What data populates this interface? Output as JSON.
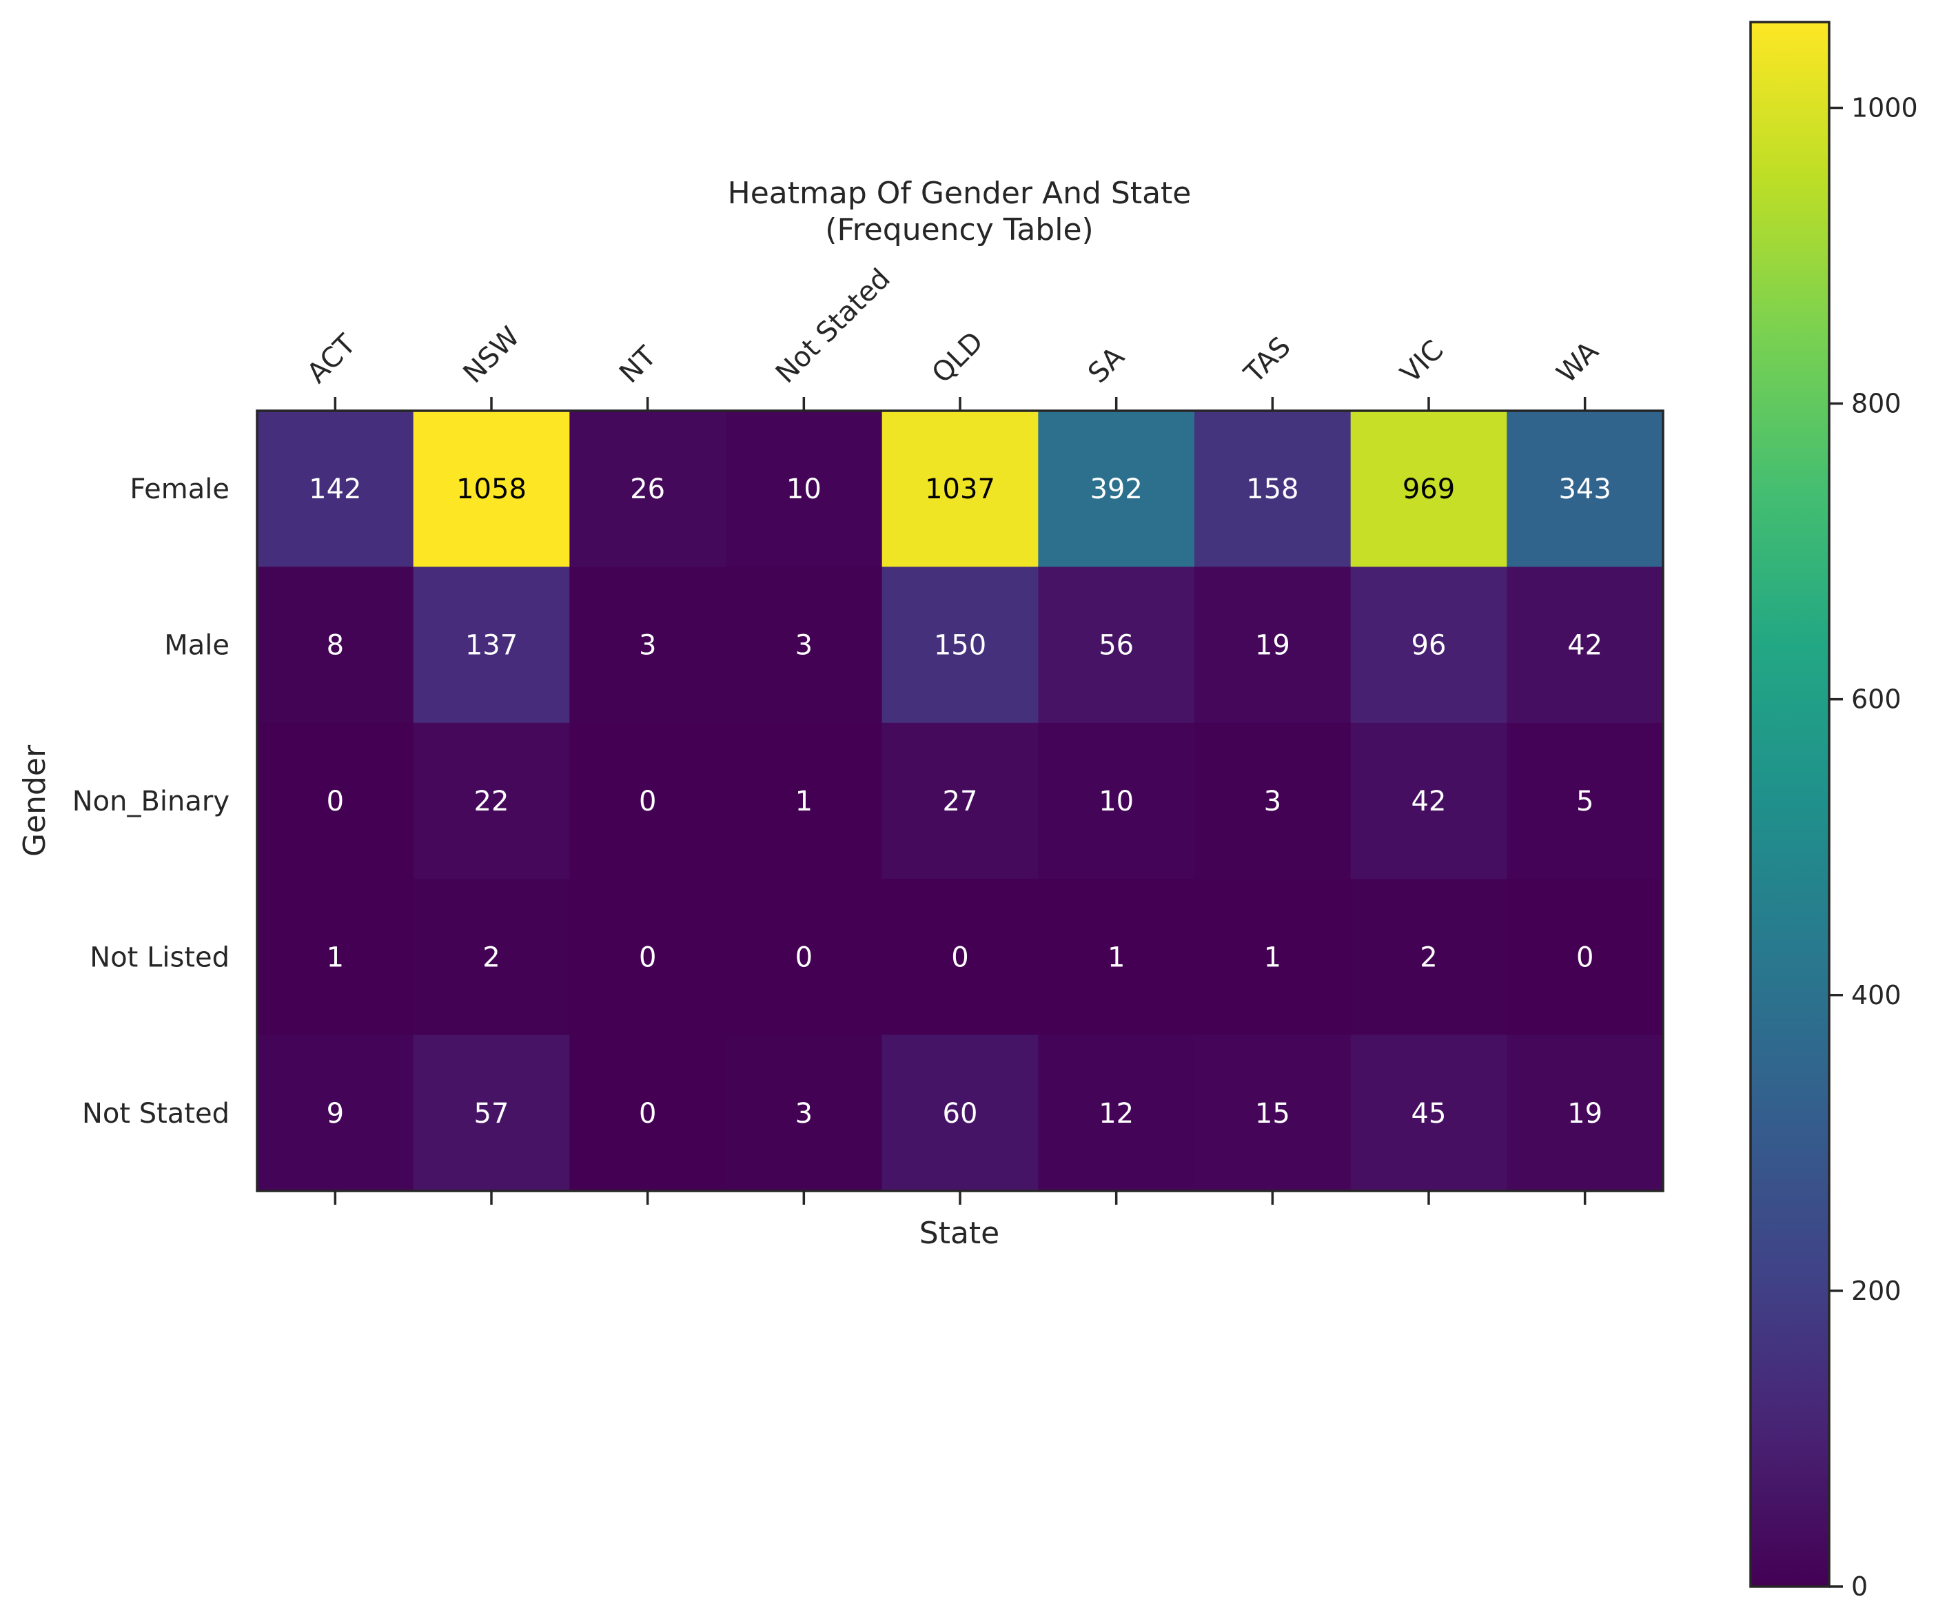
{
  "chart_data": {
    "type": "heatmap",
    "title_lines": [
      "Heatmap Of Gender And State",
      "(Frequency Table)"
    ],
    "xlabel": "State",
    "ylabel": "Gender",
    "x_categories": [
      "ACT",
      "NSW",
      "NT",
      "Not Stated",
      "QLD",
      "SA",
      "TAS",
      "VIC",
      "WA"
    ],
    "y_categories": [
      "Female",
      "Male",
      "Non_Binary",
      "Not Listed",
      "Not Stated"
    ],
    "values": [
      [
        142,
        1058,
        26,
        10,
        1037,
        392,
        158,
        969,
        343
      ],
      [
        8,
        137,
        3,
        3,
        150,
        56,
        19,
        96,
        42
      ],
      [
        0,
        22,
        0,
        1,
        27,
        10,
        3,
        42,
        5
      ],
      [
        1,
        2,
        0,
        0,
        0,
        1,
        1,
        2,
        0
      ],
      [
        9,
        57,
        0,
        3,
        60,
        12,
        15,
        45,
        19
      ]
    ],
    "colormap": "viridis",
    "colorbar": {
      "vmin": 0,
      "vmax": 1058,
      "ticks": [
        0,
        200,
        400,
        600,
        800,
        1000
      ]
    },
    "x_tick_position": "top",
    "x_tick_rotation_deg": -45
  }
}
